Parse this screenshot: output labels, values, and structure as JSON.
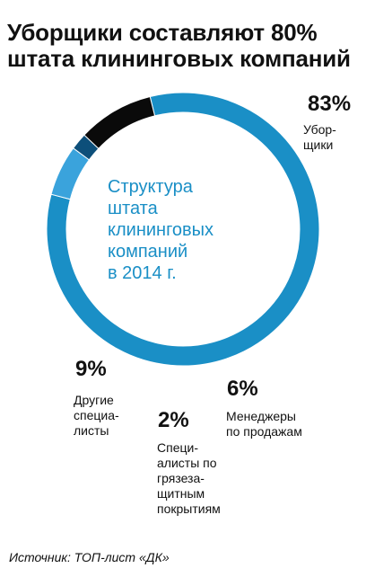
{
  "title_lines": [
    "Уборщики составляют 80%",
    "штата клининговых компаний"
  ],
  "center_label_lines": [
    "Структура",
    "штата",
    "клининговых",
    "компаний",
    "в 2014 г."
  ],
  "source": "Источник: ТОП-лист «ДК»",
  "colors": {
    "cleaners": "#1a8fc6",
    "managers": "#3aa3dc",
    "coatings": "#0d4f7a",
    "other": "#0a0a0a",
    "center_text": "#1a8fc6"
  },
  "chart_data": {
    "type": "pie",
    "title": "Уборщики составляют 80% штата клининговых компаний",
    "subtitle": "Структура штата клининговых компаний в 2014 г.",
    "slices": [
      {
        "key": "cleaners",
        "label_lines": [
          "Убор-",
          "щики"
        ],
        "value": 83,
        "value_label": "83%",
        "color": "#1a8fc6"
      },
      {
        "key": "managers",
        "label_lines": [
          "Менеджеры",
          "по продажам"
        ],
        "value": 6,
        "value_label": "6%",
        "color": "#3aa3dc"
      },
      {
        "key": "coatings",
        "label_lines": [
          "Специ-",
          "алисты по",
          "грязеза-",
          "щитным",
          "покрытиям"
        ],
        "value": 2,
        "value_label": "2%",
        "color": "#0d4f7a"
      },
      {
        "key": "other",
        "label_lines": [
          "Другие",
          "специа-",
          "листы"
        ],
        "value": 9,
        "value_label": "9%",
        "color": "#0a0a0a"
      }
    ]
  }
}
